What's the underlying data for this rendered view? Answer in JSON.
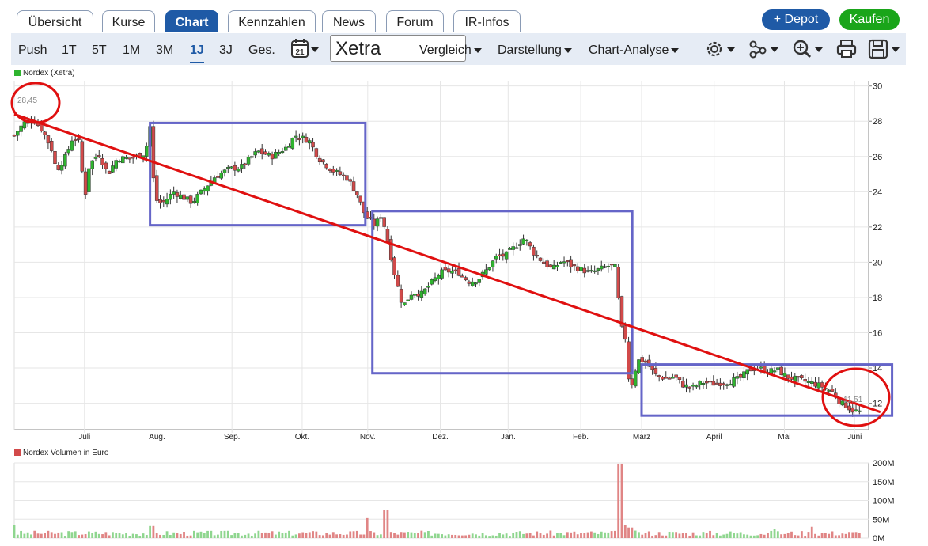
{
  "tabs": [
    "Übersicht",
    "Kurse",
    "Chart",
    "Kennzahlen",
    "News",
    "Forum",
    "IR-Infos"
  ],
  "active_tab": "Chart",
  "actions": {
    "depot": "+ Depot",
    "kaufen": "Kaufen"
  },
  "periods": [
    "Push",
    "1T",
    "5T",
    "1M",
    "3M",
    "1J",
    "3J",
    "Ges."
  ],
  "active_period": "1J",
  "calendar_day": "21",
  "exchange": "Xetra",
  "menus": {
    "vergleich": "Vergleich",
    "darstellung": "Darstellung",
    "analyse": "Chart-Analyse"
  },
  "icons": [
    "settings-icon",
    "indicators-icon",
    "zoom-icon",
    "print-icon",
    "save-icon"
  ],
  "colors": {
    "up": "#2fb42f",
    "down": "#d24a4a",
    "trend": "#e01010",
    "box": "#6565c8",
    "circle": "#e01010",
    "accent": "#1f5aa6",
    "buy": "#1aa51a"
  },
  "chart_data": {
    "type": "candlestick",
    "series_name": "Nordex (Xetra)",
    "y_ticks": [
      12,
      14,
      16,
      18,
      20,
      22,
      24,
      26,
      28,
      30
    ],
    "ylim": [
      10.5,
      30.3
    ],
    "x_ticks": [
      "Juli",
      "Aug.",
      "Sep.",
      "Okt.",
      "Nov.",
      "Dez.",
      "Jan.",
      "Feb.",
      "März",
      "April",
      "Mai",
      "Juni"
    ],
    "x_range_days": [
      0,
      365
    ],
    "x_tick_days": [
      30,
      61,
      93,
      123,
      151,
      182,
      211,
      242,
      268,
      299,
      329,
      359
    ],
    "annotations": {
      "high_label": "28,45",
      "low_label": "11,51"
    },
    "drawn_trendline": [
      [
        0,
        28.4
      ],
      [
        370,
        11.5
      ]
    ],
    "drawn_boxes": [
      {
        "day_from": 58,
        "day_to": 150,
        "price_low": 22.1,
        "price_high": 27.9
      },
      {
        "day_from": 153,
        "day_to": 264,
        "price_low": 13.7,
        "price_high": 22.9
      },
      {
        "day_from": 268,
        "day_to": 375,
        "price_low": 11.3,
        "price_high": 14.2
      }
    ],
    "close_path": [
      [
        0,
        27.2
      ],
      [
        4,
        27.9
      ],
      [
        8,
        28.1
      ],
      [
        12,
        27.5
      ],
      [
        16,
        26.4
      ],
      [
        18,
        25.2
      ],
      [
        22,
        26.0
      ],
      [
        25,
        27.1
      ],
      [
        28,
        26.8
      ],
      [
        30,
        23.5
      ],
      [
        32,
        25.5
      ],
      [
        36,
        26.2
      ],
      [
        40,
        25.0
      ],
      [
        44,
        25.9
      ],
      [
        50,
        25.9
      ],
      [
        56,
        26.2
      ],
      [
        58,
        27.7
      ],
      [
        60,
        23.6
      ],
      [
        63,
        23.3
      ],
      [
        68,
        24.0
      ],
      [
        72,
        23.7
      ],
      [
        76,
        23.4
      ],
      [
        80,
        24.0
      ],
      [
        86,
        24.9
      ],
      [
        92,
        25.3
      ],
      [
        97,
        25.4
      ],
      [
        100,
        25.8
      ],
      [
        104,
        26.3
      ],
      [
        110,
        26.0
      ],
      [
        116,
        26.5
      ],
      [
        120,
        27.2
      ],
      [
        126,
        26.9
      ],
      [
        130,
        25.9
      ],
      [
        136,
        25.2
      ],
      [
        142,
        24.8
      ],
      [
        146,
        24.0
      ],
      [
        150,
        22.6
      ],
      [
        154,
        22.1
      ],
      [
        157,
        22.7
      ],
      [
        160,
        20.9
      ],
      [
        163,
        19.0
      ],
      [
        166,
        17.5
      ],
      [
        170,
        18.3
      ],
      [
        174,
        18.2
      ],
      [
        178,
        18.8
      ],
      [
        182,
        19.4
      ],
      [
        186,
        19.5
      ],
      [
        190,
        19.4
      ],
      [
        194,
        18.9
      ],
      [
        198,
        19.0
      ],
      [
        202,
        19.6
      ],
      [
        206,
        20.3
      ],
      [
        210,
        20.4
      ],
      [
        214,
        20.9
      ],
      [
        218,
        21.4
      ],
      [
        222,
        20.5
      ],
      [
        226,
        20.0
      ],
      [
        230,
        19.6
      ],
      [
        234,
        20.1
      ],
      [
        238,
        19.8
      ],
      [
        242,
        19.6
      ],
      [
        246,
        19.4
      ],
      [
        250,
        19.6
      ],
      [
        254,
        19.8
      ],
      [
        257,
        19.7
      ],
      [
        259,
        16.4
      ],
      [
        261,
        15.7
      ],
      [
        263,
        12.6
      ],
      [
        265,
        13.8
      ],
      [
        267,
        14.5
      ],
      [
        270,
        14.3
      ],
      [
        274,
        13.6
      ],
      [
        278,
        13.4
      ],
      [
        282,
        13.5
      ],
      [
        286,
        13.0
      ],
      [
        290,
        12.9
      ],
      [
        294,
        13.2
      ],
      [
        298,
        13.1
      ],
      [
        304,
        13.2
      ],
      [
        310,
        13.4
      ],
      [
        314,
        13.9
      ],
      [
        318,
        14.0
      ],
      [
        322,
        13.8
      ],
      [
        326,
        13.9
      ],
      [
        330,
        13.5
      ],
      [
        336,
        13.3
      ],
      [
        342,
        13.1
      ],
      [
        346,
        12.9
      ],
      [
        350,
        12.6
      ],
      [
        353,
        12.0
      ],
      [
        355,
        11.9
      ],
      [
        358,
        11.6
      ],
      [
        362,
        11.5
      ]
    ],
    "volume": {
      "series_name": "Nordex Volumen in Euro",
      "y_ticks": [
        "0M",
        "50M",
        "100M",
        "150M",
        "200M"
      ],
      "ylim": [
        0,
        200
      ],
      "spikes": [
        [
          0,
          35
        ],
        [
          59,
          32
        ],
        [
          151,
          55
        ],
        [
          159,
          75
        ],
        [
          259,
          198
        ],
        [
          261,
          35
        ],
        [
          263,
          28
        ],
        [
          325,
          25
        ],
        [
          341,
          30
        ]
      ]
    }
  }
}
